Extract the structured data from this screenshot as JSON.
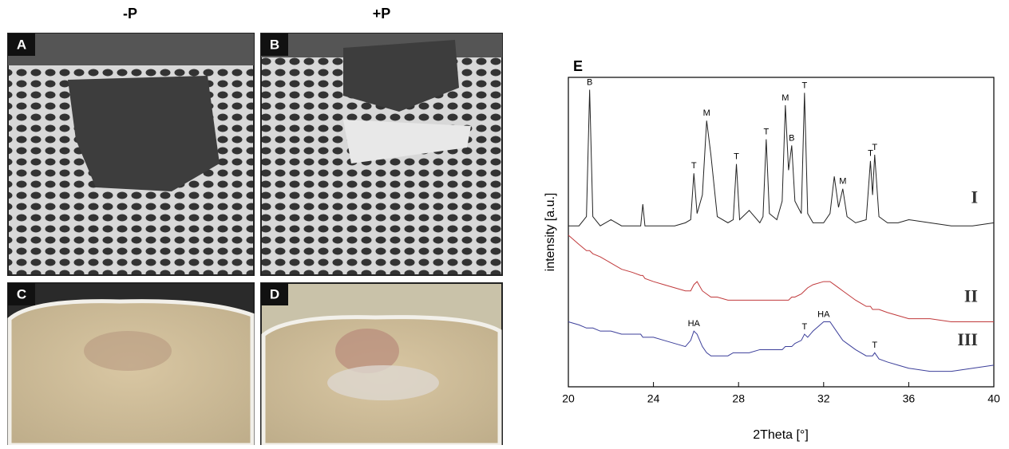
{
  "figure": {
    "columns": [
      "-P",
      "+P"
    ],
    "panels": [
      "A",
      "B",
      "C",
      "D"
    ]
  },
  "chart_data": {
    "type": "line",
    "panel_label": "E",
    "xlabel": "2Theta [°]",
    "ylabel": "intensity [a.u.]",
    "x": [
      20,
      20.5,
      20.85,
      21.0,
      21.15,
      21.5,
      22,
      22.5,
      23,
      23.4,
      23.5,
      23.6,
      24,
      24.5,
      25,
      25.5,
      25.75,
      25.9,
      26.05,
      26.3,
      26.5,
      26.7,
      27,
      27.5,
      27.75,
      27.9,
      28.05,
      28.5,
      29,
      29.15,
      29.3,
      29.45,
      29.8,
      30.05,
      30.2,
      30.35,
      30.5,
      30.65,
      30.95,
      31.1,
      31.25,
      31.5,
      32,
      32.3,
      32.5,
      32.7,
      32.9,
      33.1,
      33.5,
      34,
      34.2,
      34.3,
      34.4,
      34.6,
      35,
      35.5,
      36,
      37,
      38,
      39,
      40
    ],
    "series": [
      {
        "name": "I",
        "color": "#222222",
        "values": [
          52,
          52,
          55,
          96,
          55,
          52,
          54,
          52,
          52,
          52,
          59,
          52,
          52,
          52,
          52,
          53,
          54,
          69,
          56,
          62,
          86,
          75,
          55,
          53,
          54,
          72,
          54,
          57,
          53,
          55,
          80,
          56,
          54,
          60,
          91,
          70,
          78,
          60,
          56,
          95,
          56,
          53,
          53,
          56,
          68,
          58,
          64,
          55,
          53,
          54,
          73,
          62,
          75,
          55,
          53,
          53,
          54,
          53,
          52,
          52,
          53
        ],
        "peaks": [
          {
            "label": "B",
            "x": 21.0
          },
          {
            "label": "T",
            "x": 25.9
          },
          {
            "label": "M",
            "x": 26.5
          },
          {
            "label": "T",
            "x": 27.9
          },
          {
            "label": "T",
            "x": 29.3
          },
          {
            "label": "M",
            "x": 30.2
          },
          {
            "label": "B",
            "x": 30.5
          },
          {
            "label": "T",
            "x": 31.1
          },
          {
            "label": "M",
            "x": 32.9
          },
          {
            "label": "T",
            "x": 34.2
          },
          {
            "label": "T",
            "x": 34.4
          }
        ]
      },
      {
        "name": "II",
        "color": "#c0393b",
        "values": [
          49,
          46,
          44,
          44,
          43,
          42,
          40,
          38,
          37,
          36,
          36,
          35,
          34,
          33,
          32,
          31,
          31,
          33,
          34,
          31,
          30,
          29,
          29,
          28,
          28,
          28,
          28,
          28,
          28,
          28,
          28,
          28,
          28,
          28,
          28,
          28,
          29,
          29,
          30,
          31,
          32,
          33,
          34,
          34,
          33,
          32,
          31,
          30,
          28,
          26,
          26,
          25,
          25,
          25,
          24,
          23,
          22,
          22,
          21,
          21,
          21
        ],
        "peaks": []
      },
      {
        "name": "III",
        "color": "#3c3f9a",
        "values": [
          21,
          20,
          19,
          19,
          19,
          18,
          18,
          17,
          17,
          17,
          16,
          16,
          16,
          15,
          14,
          13,
          15,
          18,
          17,
          13,
          11,
          10,
          10,
          10,
          11,
          11,
          11,
          11,
          12,
          12,
          12,
          12,
          12,
          12,
          13,
          13,
          13,
          14,
          15,
          17,
          16,
          18,
          21,
          21,
          19,
          17,
          15,
          14,
          12,
          10,
          10,
          10,
          11,
          9,
          8,
          7,
          6,
          5,
          5,
          6,
          7
        ],
        "peaks": [
          {
            "label": "HA",
            "x": 25.9
          },
          {
            "label": "T",
            "x": 31.1
          },
          {
            "label": "HA",
            "x": 32.0
          },
          {
            "label": "T",
            "x": 34.4
          }
        ]
      }
    ],
    "xlim": [
      20,
      40
    ],
    "ylim": [
      0,
      100
    ],
    "xticks": [
      20,
      24,
      28,
      32,
      36,
      40
    ]
  }
}
